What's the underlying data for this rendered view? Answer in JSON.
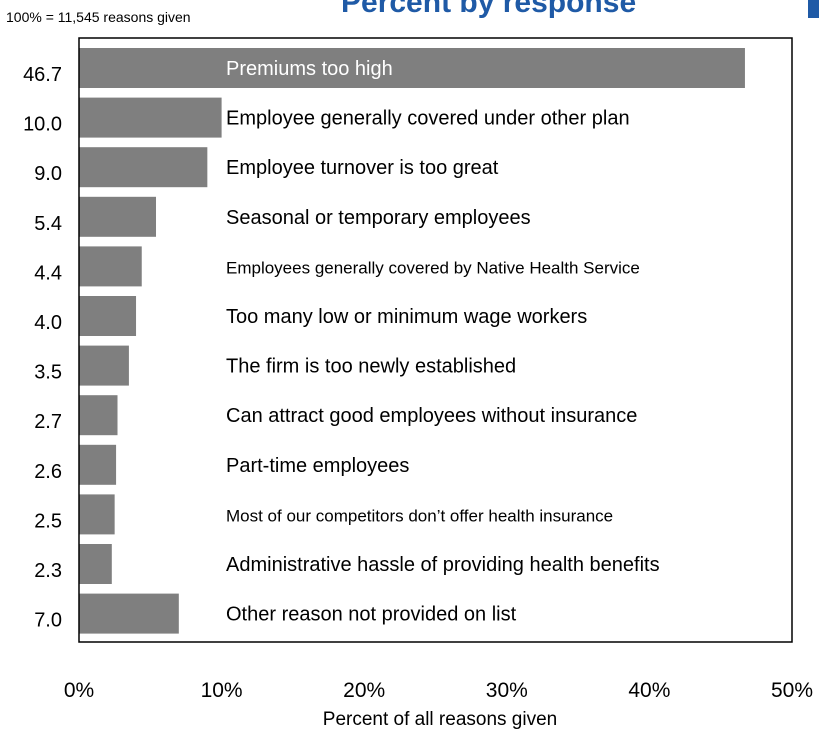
{
  "note": "100% = 11,545 reasons given",
  "title": "Percent by response",
  "colors": {
    "bar": "#7f7f7f",
    "bar_label_inside": "#ffffff",
    "title": "#1f5aa6",
    "axis": "#000000"
  },
  "chart_data": {
    "type": "bar",
    "orientation": "horizontal",
    "categories": [
      "Premiums too high",
      "Employee generally covered under other plan",
      "Employee turnover is too great",
      "Seasonal or temporary employees",
      "Employees generally covered by Native Health Service",
      "Too many low or minimum wage workers",
      "The firm is too newly established",
      "Can attract good employees without insurance",
      "Part-time employees",
      "Most of our competitors don’t offer health insurance",
      "Administrative hassle of providing health benefits",
      "Other reason not provided on list"
    ],
    "values": [
      46.7,
      10.0,
      9.0,
      5.4,
      4.4,
      4.0,
      3.5,
      2.7,
      2.6,
      2.5,
      2.3,
      7.0
    ],
    "value_labels": [
      "46.7",
      "10.0",
      "9.0",
      "5.4",
      "4.4",
      "4.0",
      "3.5",
      "2.7",
      "2.6",
      "2.5",
      "2.3",
      "7.0"
    ],
    "xlabel": "Percent of all reasons given",
    "xlim": [
      0,
      50
    ],
    "xticks": [
      "0%",
      "10%",
      "20%",
      "30%",
      "40%",
      "50%"
    ],
    "grid": false
  }
}
